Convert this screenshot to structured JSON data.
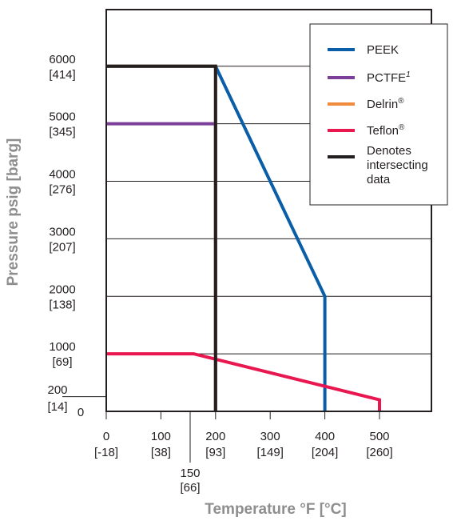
{
  "chart_data": {
    "type": "line",
    "xlabel": "Temperature °F [°C]",
    "ylabel": "Pressure psig [barg]",
    "xlim": [
      0,
      600
    ],
    "ylim": [
      0,
      7000
    ],
    "grid": "horizontal",
    "legend_position": "top-right",
    "x_ticks": [
      {
        "value": 0,
        "f": "0",
        "c": "[-18]"
      },
      {
        "value": 100,
        "f": "100",
        "c": "[38]"
      },
      {
        "value": 200,
        "f": "200",
        "c": "[93]"
      },
      {
        "value": 300,
        "f": "300",
        "c": "[149]"
      },
      {
        "value": 400,
        "f": "400",
        "c": "[204]"
      },
      {
        "value": 500,
        "f": "500",
        "c": "[260]"
      }
    ],
    "x_extra_tick": {
      "value": 150,
      "f": "150",
      "c": "[66]"
    },
    "y_ticks": [
      {
        "value": 0,
        "psi": "0",
        "bar": ""
      },
      {
        "value": 1000,
        "psi": "1000",
        "bar": "[69]"
      },
      {
        "value": 2000,
        "psi": "2000",
        "bar": "[138]"
      },
      {
        "value": 3000,
        "psi": "3000",
        "bar": "[207]"
      },
      {
        "value": 4000,
        "psi": "4000",
        "bar": "[276]"
      },
      {
        "value": 5000,
        "psi": "5000",
        "bar": "[345]"
      },
      {
        "value": 6000,
        "psi": "6000",
        "bar": "[414]"
      }
    ],
    "y_extra_tick": {
      "value": 200,
      "psi": "200",
      "bar": "[14]"
    },
    "series": [
      {
        "name": "PEEK",
        "legend": "PEEK",
        "sup": "",
        "color": "#0a5ea8",
        "x": [
          0,
          200,
          400,
          400
        ],
        "y": [
          6000,
          6000,
          2000,
          0
        ]
      },
      {
        "name": "PCTFE",
        "legend": "PCTFE",
        "sup": "1",
        "color": "#7b3f98",
        "x": [
          0,
          200,
          200
        ],
        "y": [
          5000,
          5000,
          0
        ]
      },
      {
        "name": "Delrin",
        "legend": "Delrin",
        "sup": "®",
        "color": "#f08a3c",
        "x": [
          0,
          200,
          200
        ],
        "y": [
          6000,
          6000,
          0
        ]
      },
      {
        "name": "Teflon",
        "legend": "Teflon",
        "sup": "®",
        "color": "#e8174f",
        "x": [
          0,
          160,
          500,
          500
        ],
        "y": [
          1000,
          1000,
          200,
          0
        ]
      },
      {
        "name": "Denotes intersecting data",
        "legend": "Denotes intersecting data",
        "sup": "",
        "color": "#231f20",
        "x": [
          0,
          200,
          200
        ],
        "y": [
          6000,
          6000,
          0
        ]
      }
    ],
    "legend_lines": [
      {
        "line1": "PEEK",
        "sup": ""
      },
      {
        "line1": "PCTFE",
        "sup": "1"
      },
      {
        "line1": "Delrin",
        "sup": "®"
      },
      {
        "line1": "Teflon",
        "sup": "®"
      },
      {
        "line1": "Denotes",
        "line2": "intersecting",
        "line3": "data",
        "sup": ""
      }
    ]
  }
}
